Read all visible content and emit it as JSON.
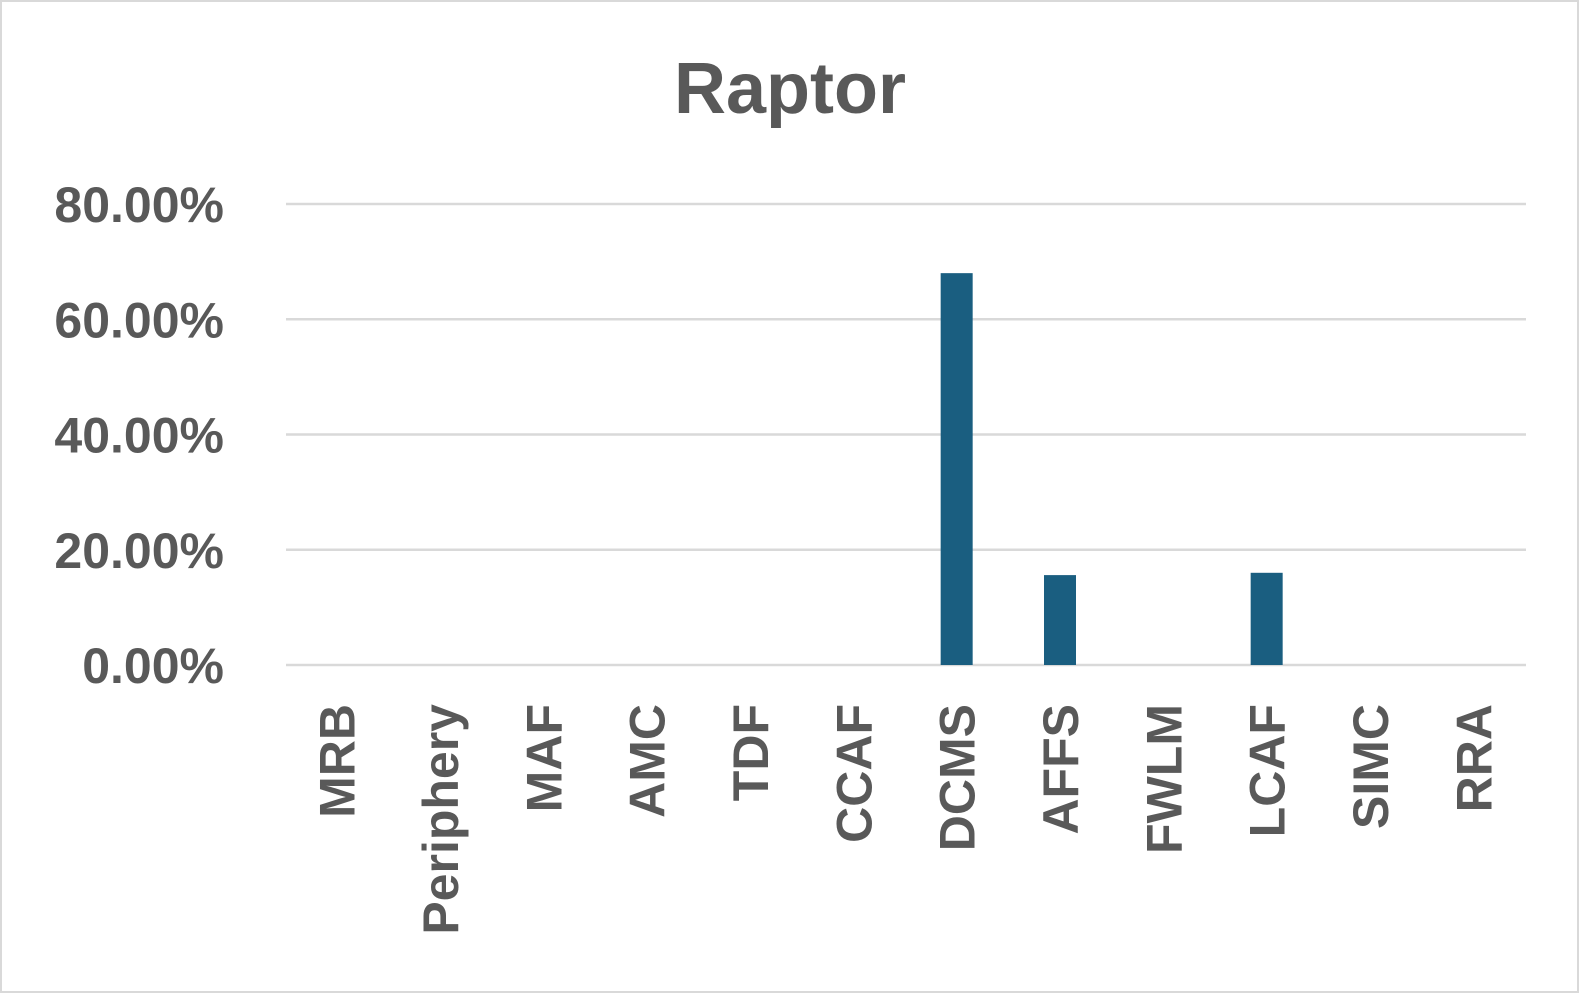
{
  "chart_data": {
    "type": "bar",
    "title": "Raptor",
    "xlabel": "",
    "ylabel": "",
    "categories": [
      "MRB",
      "Periphery",
      "MAF",
      "AMC",
      "TDF",
      "CCAF",
      "DCMS",
      "AFFS",
      "FWLM",
      "LCAF",
      "SIMC",
      "RRA"
    ],
    "values": [
      0,
      0,
      0,
      0,
      0,
      0,
      68.0,
      15.6,
      0,
      16.0,
      0,
      0
    ],
    "ylim": [
      0,
      80
    ],
    "yticks": [
      0,
      20,
      40,
      60,
      80
    ],
    "ytick_labels": [
      "0.00%",
      "20.00%",
      "40.00%",
      "60.00%",
      "80.00%"
    ],
    "grid": true,
    "legend": "none",
    "bar_color": "#1a5e80"
  }
}
